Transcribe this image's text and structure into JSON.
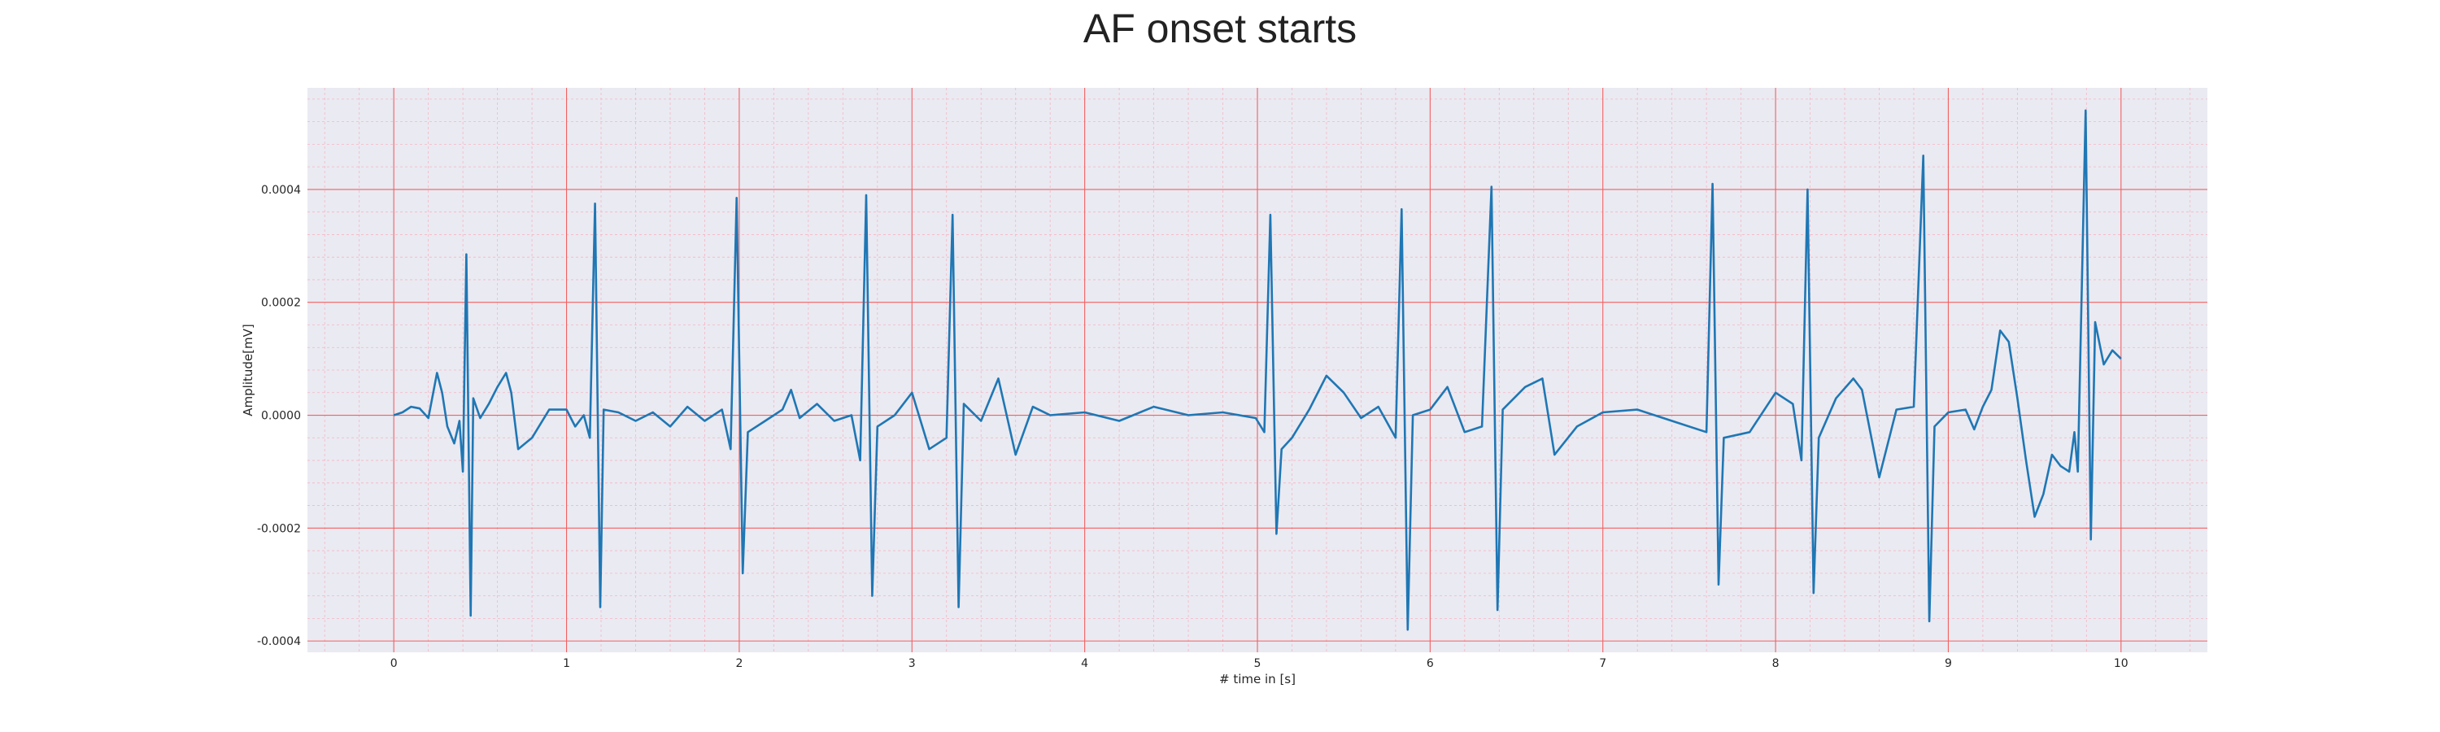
{
  "chart_data": {
    "type": "line",
    "title": "AF onset starts",
    "xlabel": "# time in [s]",
    "ylabel": "Amplitude[mV]",
    "xlim": [
      -0.5,
      10.5
    ],
    "ylim": [
      -0.00042,
      0.00058
    ],
    "x_ticks": [
      0,
      1,
      2,
      3,
      4,
      5,
      6,
      7,
      8,
      9,
      10
    ],
    "x_tick_labels": [
      "0",
      "1",
      "2",
      "3",
      "4",
      "5",
      "6",
      "7",
      "8",
      "9",
      "10"
    ],
    "y_ticks": [
      -0.0004,
      -0.0002,
      0.0,
      0.0002,
      0.0004
    ],
    "y_tick_labels": [
      "-0.0004",
      "-0.0002",
      "0.0000",
      "0.0002",
      "0.0004"
    ],
    "grid": true,
    "minor_grid": true,
    "colors": {
      "plot_background": "#eaeaf2",
      "major_grid": "#f36060",
      "minor_grid": "#f7b5c2",
      "line": "#1f77b4",
      "text": "#262626"
    },
    "series": [
      {
        "points": [
          [
            0.0,
            0.0
          ],
          [
            0.05,
            5e-06
          ],
          [
            0.1,
            1.5e-05
          ],
          [
            0.15,
            1.2e-05
          ],
          [
            0.2,
            -5e-06
          ],
          [
            0.25,
            7.5e-05
          ],
          [
            0.28,
            4e-05
          ],
          [
            0.31,
            -2e-05
          ],
          [
            0.35,
            -5e-05
          ],
          [
            0.38,
            -1e-05
          ],
          [
            0.4,
            -0.0001
          ],
          [
            0.42,
            0.000285
          ],
          [
            0.445,
            -0.000355
          ],
          [
            0.46,
            3e-05
          ],
          [
            0.5,
            -5e-06
          ],
          [
            0.55,
            2e-05
          ],
          [
            0.6,
            5e-05
          ],
          [
            0.65,
            7.5e-05
          ],
          [
            0.68,
            4e-05
          ],
          [
            0.72,
            -6e-05
          ],
          [
            0.8,
            -4e-05
          ],
          [
            0.9,
            1e-05
          ],
          [
            1.0,
            1e-05
          ],
          [
            1.05,
            -2e-05
          ],
          [
            1.1,
            0.0
          ],
          [
            1.135,
            -4e-05
          ],
          [
            1.165,
            0.000375
          ],
          [
            1.195,
            -0.00034
          ],
          [
            1.215,
            1e-05
          ],
          [
            1.3,
            5e-06
          ],
          [
            1.4,
            -1e-05
          ],
          [
            1.5,
            5e-06
          ],
          [
            1.6,
            -2e-05
          ],
          [
            1.7,
            1.5e-05
          ],
          [
            1.8,
            -1e-05
          ],
          [
            1.9,
            1e-05
          ],
          [
            1.95,
            -6e-05
          ],
          [
            1.985,
            0.000385
          ],
          [
            2.02,
            -0.00028
          ],
          [
            2.05,
            -3e-05
          ],
          [
            2.15,
            -1e-05
          ],
          [
            2.25,
            1e-05
          ],
          [
            2.3,
            4.5e-05
          ],
          [
            2.35,
            -5e-06
          ],
          [
            2.45,
            2e-05
          ],
          [
            2.55,
            -1e-05
          ],
          [
            2.65,
            0.0
          ],
          [
            2.7,
            -8e-05
          ],
          [
            2.735,
            0.00039
          ],
          [
            2.77,
            -0.00032
          ],
          [
            2.8,
            -2e-05
          ],
          [
            2.9,
            0.0
          ],
          [
            3.0,
            4e-05
          ],
          [
            3.1,
            -6e-05
          ],
          [
            3.2,
            -4e-05
          ],
          [
            3.235,
            0.000355
          ],
          [
            3.27,
            -0.00034
          ],
          [
            3.3,
            2e-05
          ],
          [
            3.4,
            -1e-05
          ],
          [
            3.5,
            6.5e-05
          ],
          [
            3.6,
            -7e-05
          ],
          [
            3.7,
            1.5e-05
          ],
          [
            3.8,
            0.0
          ],
          [
            4.0,
            5e-06
          ],
          [
            4.2,
            -1e-05
          ],
          [
            4.4,
            1.5e-05
          ],
          [
            4.6,
            0.0
          ],
          [
            4.8,
            5e-06
          ],
          [
            4.99,
            -5e-06
          ],
          [
            5.04,
            -3e-05
          ],
          [
            5.075,
            0.000355
          ],
          [
            5.11,
            -0.00021
          ],
          [
            5.14,
            -6e-05
          ],
          [
            5.2,
            -4e-05
          ],
          [
            5.3,
            1e-05
          ],
          [
            5.4,
            7e-05
          ],
          [
            5.5,
            4e-05
          ],
          [
            5.6,
            -5e-06
          ],
          [
            5.7,
            1.5e-05
          ],
          [
            5.8,
            -4e-05
          ],
          [
            5.835,
            0.000365
          ],
          [
            5.87,
            -0.00038
          ],
          [
            5.9,
            0.0
          ],
          [
            6.0,
            1e-05
          ],
          [
            6.1,
            5e-05
          ],
          [
            6.2,
            -3e-05
          ],
          [
            6.3,
            -2e-05
          ],
          [
            6.355,
            0.000405
          ],
          [
            6.39,
            -0.000345
          ],
          [
            6.42,
            1e-05
          ],
          [
            6.55,
            5e-05
          ],
          [
            6.65,
            6.5e-05
          ],
          [
            6.72,
            -7e-05
          ],
          [
            6.85,
            -2e-05
          ],
          [
            7.0,
            5e-06
          ],
          [
            7.2,
            1e-05
          ],
          [
            7.4,
            -1e-05
          ],
          [
            7.6,
            -3e-05
          ],
          [
            7.635,
            0.00041
          ],
          [
            7.67,
            -0.0003
          ],
          [
            7.7,
            -4e-05
          ],
          [
            7.85,
            -3e-05
          ],
          [
            8.0,
            4e-05
          ],
          [
            8.1,
            2e-05
          ],
          [
            8.15,
            -8e-05
          ],
          [
            8.185,
            0.0004
          ],
          [
            8.22,
            -0.000315
          ],
          [
            8.25,
            -4e-05
          ],
          [
            8.35,
            3e-05
          ],
          [
            8.45,
            6.5e-05
          ],
          [
            8.5,
            4.5e-05
          ],
          [
            8.6,
            -0.00011
          ],
          [
            8.7,
            1e-05
          ],
          [
            8.8,
            1.5e-05
          ],
          [
            8.855,
            0.00046
          ],
          [
            8.89,
            -0.000365
          ],
          [
            8.92,
            -2e-05
          ],
          [
            9.0,
            5e-06
          ],
          [
            9.1,
            1e-05
          ],
          [
            9.15,
            -2.5e-05
          ],
          [
            9.2,
            1.5e-05
          ],
          [
            9.25,
            4.5e-05
          ],
          [
            9.3,
            0.00015
          ],
          [
            9.35,
            0.00013
          ],
          [
            9.4,
            3e-05
          ],
          [
            9.45,
            -8e-05
          ],
          [
            9.5,
            -0.00018
          ],
          [
            9.55,
            -0.00014
          ],
          [
            9.6,
            -7e-05
          ],
          [
            9.65,
            -9e-05
          ],
          [
            9.7,
            -0.0001
          ],
          [
            9.73,
            -3e-05
          ],
          [
            9.75,
            -0.0001
          ],
          [
            9.795,
            0.00054
          ],
          [
            9.825,
            -0.00022
          ],
          [
            9.85,
            0.000165
          ],
          [
            9.9,
            9e-05
          ],
          [
            9.95,
            0.000115
          ],
          [
            10.0,
            0.0001
          ]
        ]
      }
    ]
  }
}
